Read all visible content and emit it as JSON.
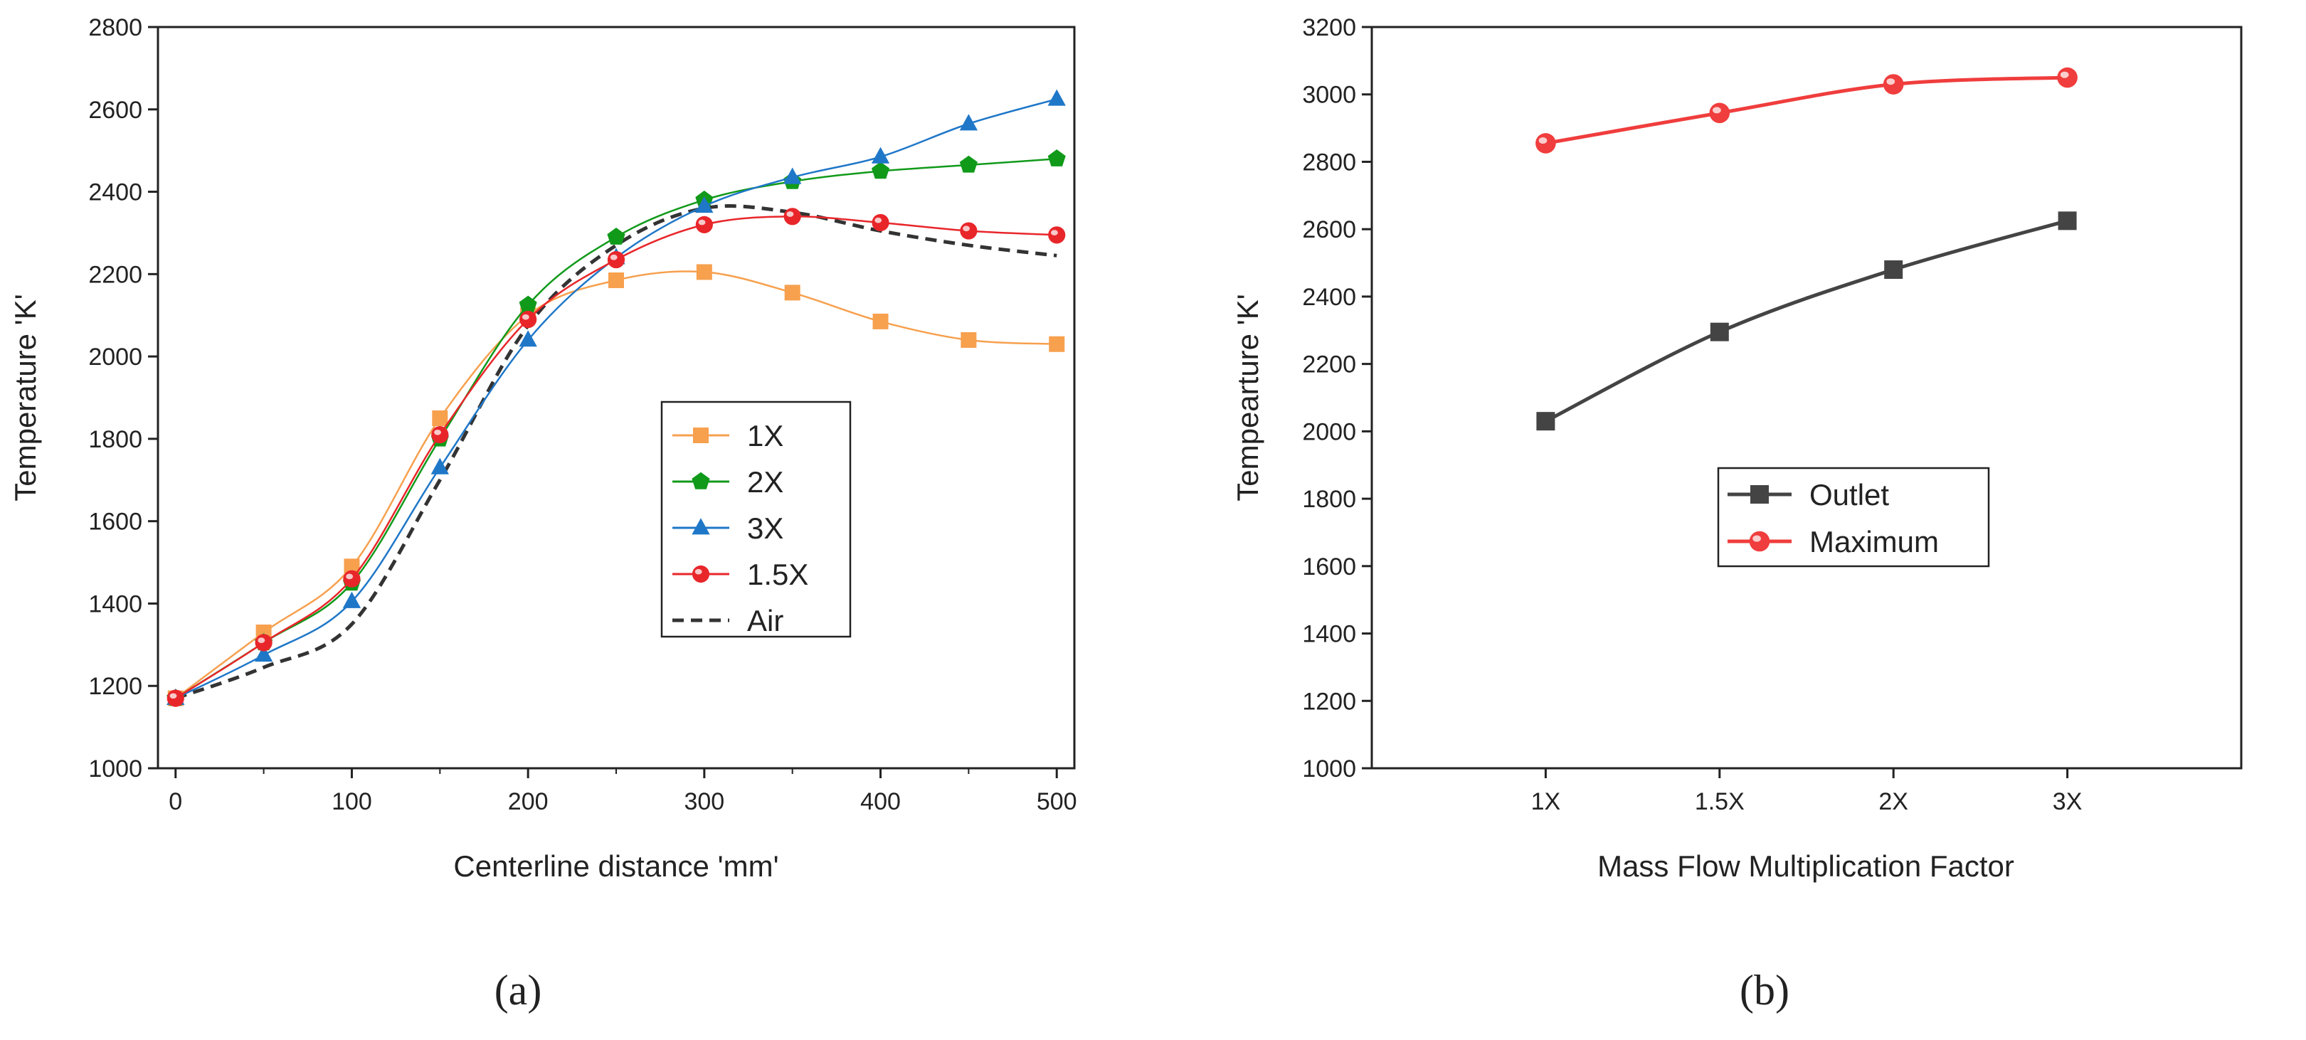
{
  "chart_data": [
    {
      "type": "line",
      "panel_label": "(a)",
      "title": "",
      "xlabel": "Centerline distance 'mm'",
      "ylabel": "Temperature 'K'",
      "xlim": [
        -10,
        510
      ],
      "ylim": [
        1000,
        2800
      ],
      "xticks": [
        0,
        100,
        200,
        300,
        400,
        500
      ],
      "yticks": [
        1000,
        1200,
        1400,
        1600,
        1800,
        2000,
        2200,
        2400,
        2600,
        2800
      ],
      "legend_position": "center-right",
      "x": [
        0,
        50,
        100,
        150,
        200,
        250,
        300,
        350,
        400,
        450,
        500
      ],
      "series": [
        {
          "name": "1X",
          "color": "#F7A04E",
          "marker": "square",
          "dashed": false,
          "values": [
            1170,
            1330,
            1490,
            1850,
            2100,
            2185,
            2205,
            2155,
            2085,
            2040,
            2030
          ]
        },
        {
          "name": "2X",
          "color": "#119A1A",
          "marker": "pentagon",
          "dashed": false,
          "values": [
            1170,
            1305,
            1450,
            1800,
            2125,
            2290,
            2380,
            2425,
            2450,
            2465,
            2480
          ]
        },
        {
          "name": "3X",
          "color": "#1F77C8",
          "marker": "triangle",
          "dashed": false,
          "values": [
            1170,
            1275,
            1405,
            1730,
            2040,
            2240,
            2365,
            2435,
            2485,
            2565,
            2625
          ]
        },
        {
          "name": "1.5X",
          "color": "#E8262A",
          "marker": "circle",
          "dashed": false,
          "values": [
            1170,
            1305,
            1460,
            1810,
            2090,
            2235,
            2320,
            2340,
            2325,
            2305,
            2295
          ]
        },
        {
          "name": "Air",
          "color": "#333333",
          "marker": "none",
          "dashed": true,
          "values": [
            1170,
            1245,
            1350,
            1700,
            2075,
            2270,
            2360,
            2350,
            2305,
            2270,
            2245
          ]
        }
      ]
    },
    {
      "type": "line",
      "panel_label": "(b)",
      "title": "",
      "xlabel": "Mass Flow Multiplication Factor",
      "ylabel": "Tempearture 'K'",
      "categories": [
        "1X",
        "1.5X",
        "2X",
        "3X"
      ],
      "ylim": [
        1000,
        3200
      ],
      "yticks": [
        1000,
        1200,
        1400,
        1600,
        1800,
        2000,
        2200,
        2400,
        2600,
        2800,
        3000,
        3200
      ],
      "legend_position": "center-left",
      "series": [
        {
          "name": "Outlet",
          "color": "#444444",
          "marker": "square",
          "values": [
            2030,
            2295,
            2480,
            2625
          ]
        },
        {
          "name": "Maximum",
          "color": "#F03D3D",
          "marker": "circle",
          "values": [
            2855,
            2945,
            3030,
            3050
          ]
        }
      ]
    }
  ]
}
